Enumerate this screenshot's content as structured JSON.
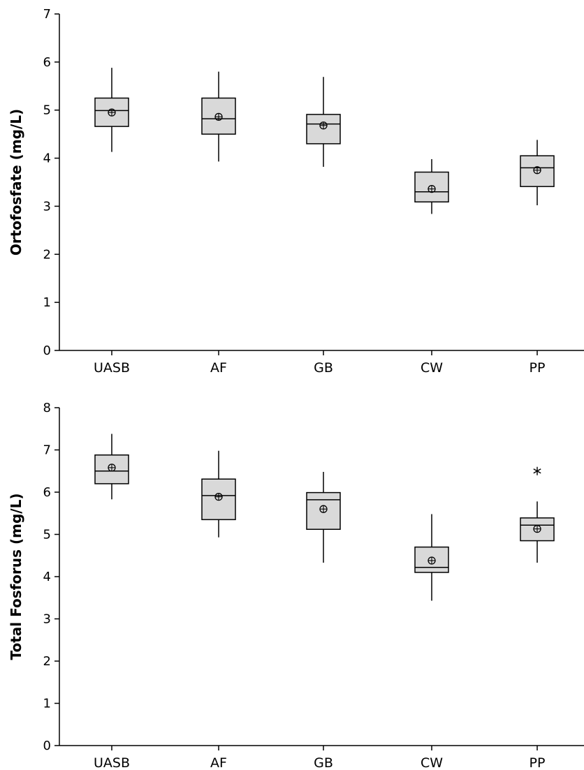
{
  "chart_data": [
    {
      "type": "box",
      "ylabel": "Ortofosfate (mg/L)",
      "xlabel": "",
      "ylim": [
        0,
        7
      ],
      "yticks": [
        0,
        1,
        2,
        3,
        4,
        5,
        6,
        7
      ],
      "categories": [
        "UASB",
        "AF",
        "GB",
        "CW",
        "PP"
      ],
      "grid": false,
      "legend": "none",
      "box_fill": "#d9d9d9",
      "line_color": "#000000",
      "boxes": [
        {
          "category": "UASB",
          "whisker_low": 4.13,
          "q1": 4.66,
          "median": 4.99,
          "q3": 5.25,
          "whisker_high": 5.88,
          "mean": 4.95,
          "outliers": []
        },
        {
          "category": "AF",
          "whisker_low": 3.93,
          "q1": 4.5,
          "median": 4.82,
          "q3": 5.25,
          "whisker_high": 5.8,
          "mean": 4.86,
          "outliers": []
        },
        {
          "category": "GB",
          "whisker_low": 3.82,
          "q1": 4.3,
          "median": 4.71,
          "q3": 4.91,
          "whisker_high": 5.69,
          "mean": 4.68,
          "outliers": []
        },
        {
          "category": "CW",
          "whisker_low": 2.84,
          "q1": 3.09,
          "median": 3.3,
          "q3": 3.71,
          "whisker_high": 3.98,
          "mean": 3.36,
          "outliers": []
        },
        {
          "category": "PP",
          "whisker_low": 3.02,
          "q1": 3.41,
          "median": 3.8,
          "q3": 4.05,
          "whisker_high": 4.38,
          "mean": 3.75,
          "outliers": []
        }
      ]
    },
    {
      "type": "box",
      "ylabel": "Total Fosforus (mg/L)",
      "xlabel": "",
      "ylim": [
        0,
        8
      ],
      "yticks": [
        0,
        1,
        2,
        3,
        4,
        5,
        6,
        7,
        8
      ],
      "categories": [
        "UASB",
        "AF",
        "GB",
        "CW",
        "PP"
      ],
      "grid": false,
      "legend": "none",
      "box_fill": "#d9d9d9",
      "line_color": "#000000",
      "boxes": [
        {
          "category": "UASB",
          "whisker_low": 5.83,
          "q1": 6.2,
          "median": 6.5,
          "q3": 6.88,
          "whisker_high": 7.38,
          "mean": 6.58,
          "outliers": []
        },
        {
          "category": "AF",
          "whisker_low": 4.93,
          "q1": 5.35,
          "median": 5.92,
          "q3": 6.31,
          "whisker_high": 6.98,
          "mean": 5.89,
          "outliers": []
        },
        {
          "category": "GB",
          "whisker_low": 4.33,
          "q1": 5.12,
          "median": 5.82,
          "q3": 5.99,
          "whisker_high": 6.48,
          "mean": 5.6,
          "outliers": []
        },
        {
          "category": "CW",
          "whisker_low": 3.43,
          "q1": 4.1,
          "median": 4.22,
          "q3": 4.7,
          "whisker_high": 5.48,
          "mean": 4.38,
          "outliers": []
        },
        {
          "category": "PP",
          "whisker_low": 4.33,
          "q1": 4.85,
          "median": 5.22,
          "q3": 5.39,
          "whisker_high": 5.78,
          "mean": 5.13,
          "outliers": [
            6.5
          ]
        }
      ]
    }
  ]
}
